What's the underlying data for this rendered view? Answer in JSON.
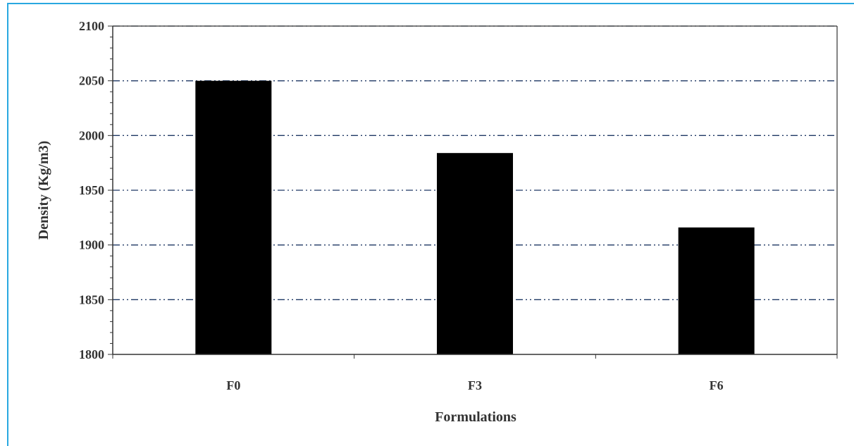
{
  "chart_data": {
    "type": "bar",
    "title": "",
    "xlabel": "Formulations",
    "ylabel": "Density (Kg/m3)",
    "categories": [
      "F0",
      "F3",
      "F6"
    ],
    "values": [
      2050,
      1984,
      1916
    ],
    "ylim": [
      1800,
      2100
    ],
    "yticks": [
      1800,
      1850,
      1900,
      1950,
      2000,
      2050,
      2100
    ],
    "grid": true,
    "legend": "none",
    "colors": {
      "bar": "#000000",
      "gridline": "#1f3864",
      "axis": "#333333",
      "frame": "#29a8e0"
    }
  }
}
